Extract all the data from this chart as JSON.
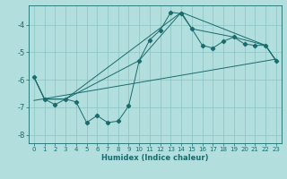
{
  "xlabel": "Humidex (Indice chaleur)",
  "bg_color": "#b2dede",
  "grid_color": "#89c4c4",
  "line_color": "#1a6b6b",
  "xlim": [
    -0.5,
    23.5
  ],
  "ylim": [
    -8.3,
    -3.3
  ],
  "yticks": [
    -8,
    -7,
    -6,
    -5,
    -4
  ],
  "xticks": [
    0,
    1,
    2,
    3,
    4,
    5,
    6,
    7,
    8,
    9,
    10,
    11,
    12,
    13,
    14,
    15,
    16,
    17,
    18,
    19,
    20,
    21,
    22,
    23
  ],
  "line1_x": [
    0,
    1,
    2,
    3,
    4,
    5,
    6,
    7,
    8,
    9,
    10,
    11,
    12,
    13,
    14,
    15,
    16,
    17,
    18,
    19,
    20,
    21,
    22,
    23
  ],
  "line1_y": [
    -5.9,
    -6.7,
    -6.9,
    -6.7,
    -6.8,
    -7.55,
    -7.3,
    -7.55,
    -7.5,
    -6.95,
    -5.3,
    -4.55,
    -4.2,
    -3.55,
    -3.6,
    -4.15,
    -4.75,
    -4.85,
    -4.6,
    -4.45,
    -4.7,
    -4.75,
    -4.75,
    -5.3
  ],
  "line2_x": [
    0,
    1,
    3,
    10,
    14,
    22,
    23
  ],
  "line2_y": [
    -5.9,
    -6.7,
    -6.7,
    -5.3,
    -3.55,
    -4.75,
    -5.3
  ],
  "line3_x": [
    0,
    1,
    3,
    14,
    15,
    19,
    22,
    23
  ],
  "line3_y": [
    -5.9,
    -6.7,
    -6.7,
    -3.55,
    -4.15,
    -4.45,
    -4.75,
    -5.3
  ],
  "line4_x": [
    0,
    23
  ],
  "line4_y": [
    -6.75,
    -5.25
  ]
}
